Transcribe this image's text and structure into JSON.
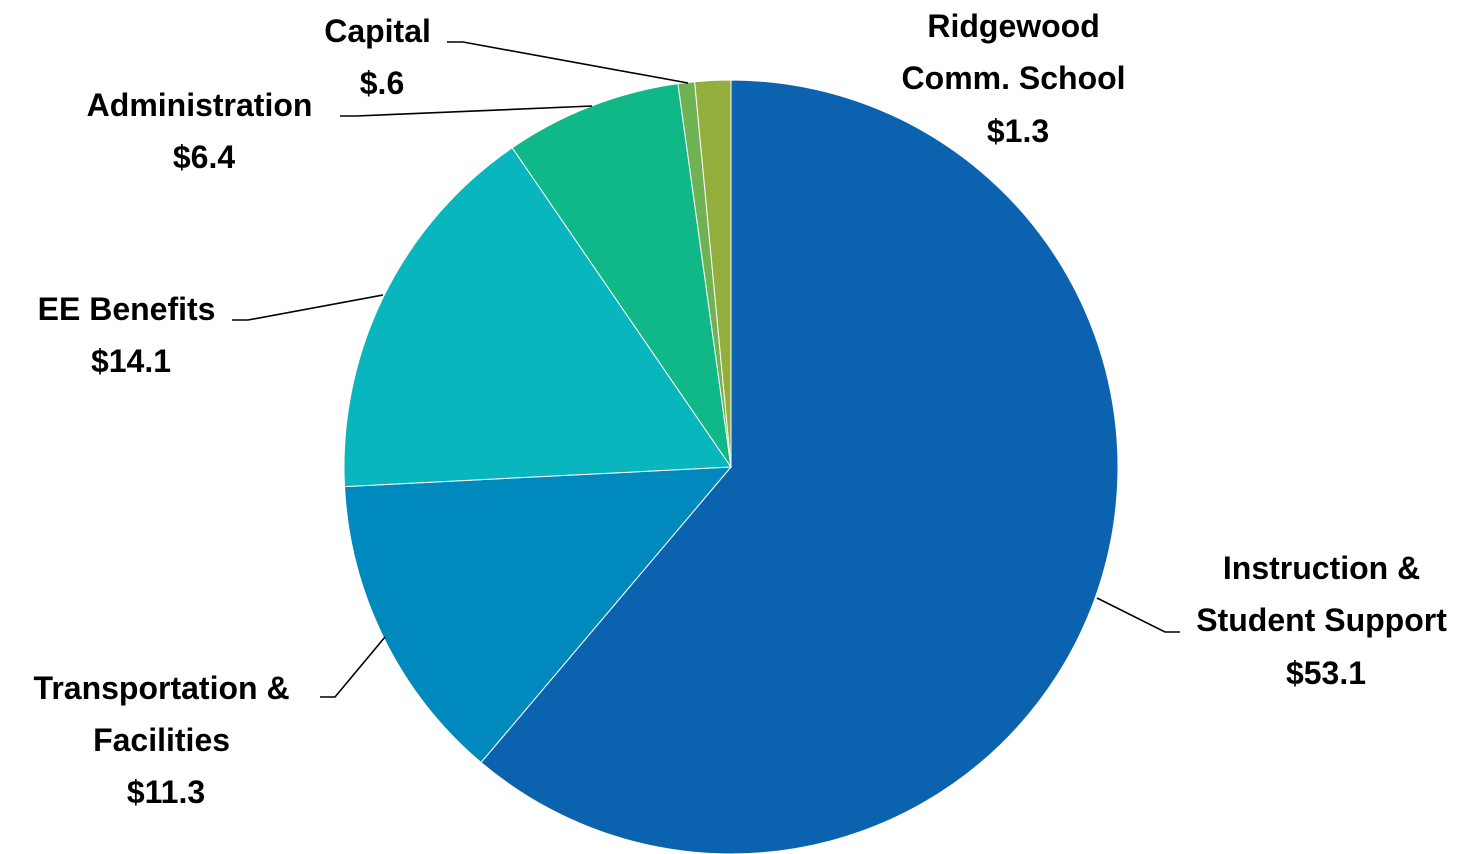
{
  "chart_data": {
    "type": "pie",
    "title": "",
    "start_angle_deg": 0,
    "direction": "clockwise",
    "slices": [
      {
        "key": "instruction",
        "label_lines": [
          "Instruction &",
          "Student Support"
        ],
        "value_label": "$53.1",
        "value": 53.1,
        "color": "#0B62AE"
      },
      {
        "key": "transportation",
        "label_lines": [
          "Transportation &",
          "Facilities"
        ],
        "value_label": "$11.3",
        "value": 11.3,
        "color": "#0089BC"
      },
      {
        "key": "benefits",
        "label_lines": [
          "EE Benefits"
        ],
        "value_label": "$14.1",
        "value": 14.1,
        "color": "#09B6BE"
      },
      {
        "key": "administration",
        "label_lines": [
          "Administration"
        ],
        "value_label": "$6.4",
        "value": 6.4,
        "color": "#10B887"
      },
      {
        "key": "capital",
        "label_lines": [
          "Capital"
        ],
        "value_label": "$.6",
        "value": 0.6,
        "color": "#6FB253"
      },
      {
        "key": "ridgewood",
        "label_lines": [
          "Ridgewood",
          "Comm. School"
        ],
        "value_label": "$1.3",
        "value": 1.3,
        "color": "#93AE3C"
      }
    ]
  }
}
